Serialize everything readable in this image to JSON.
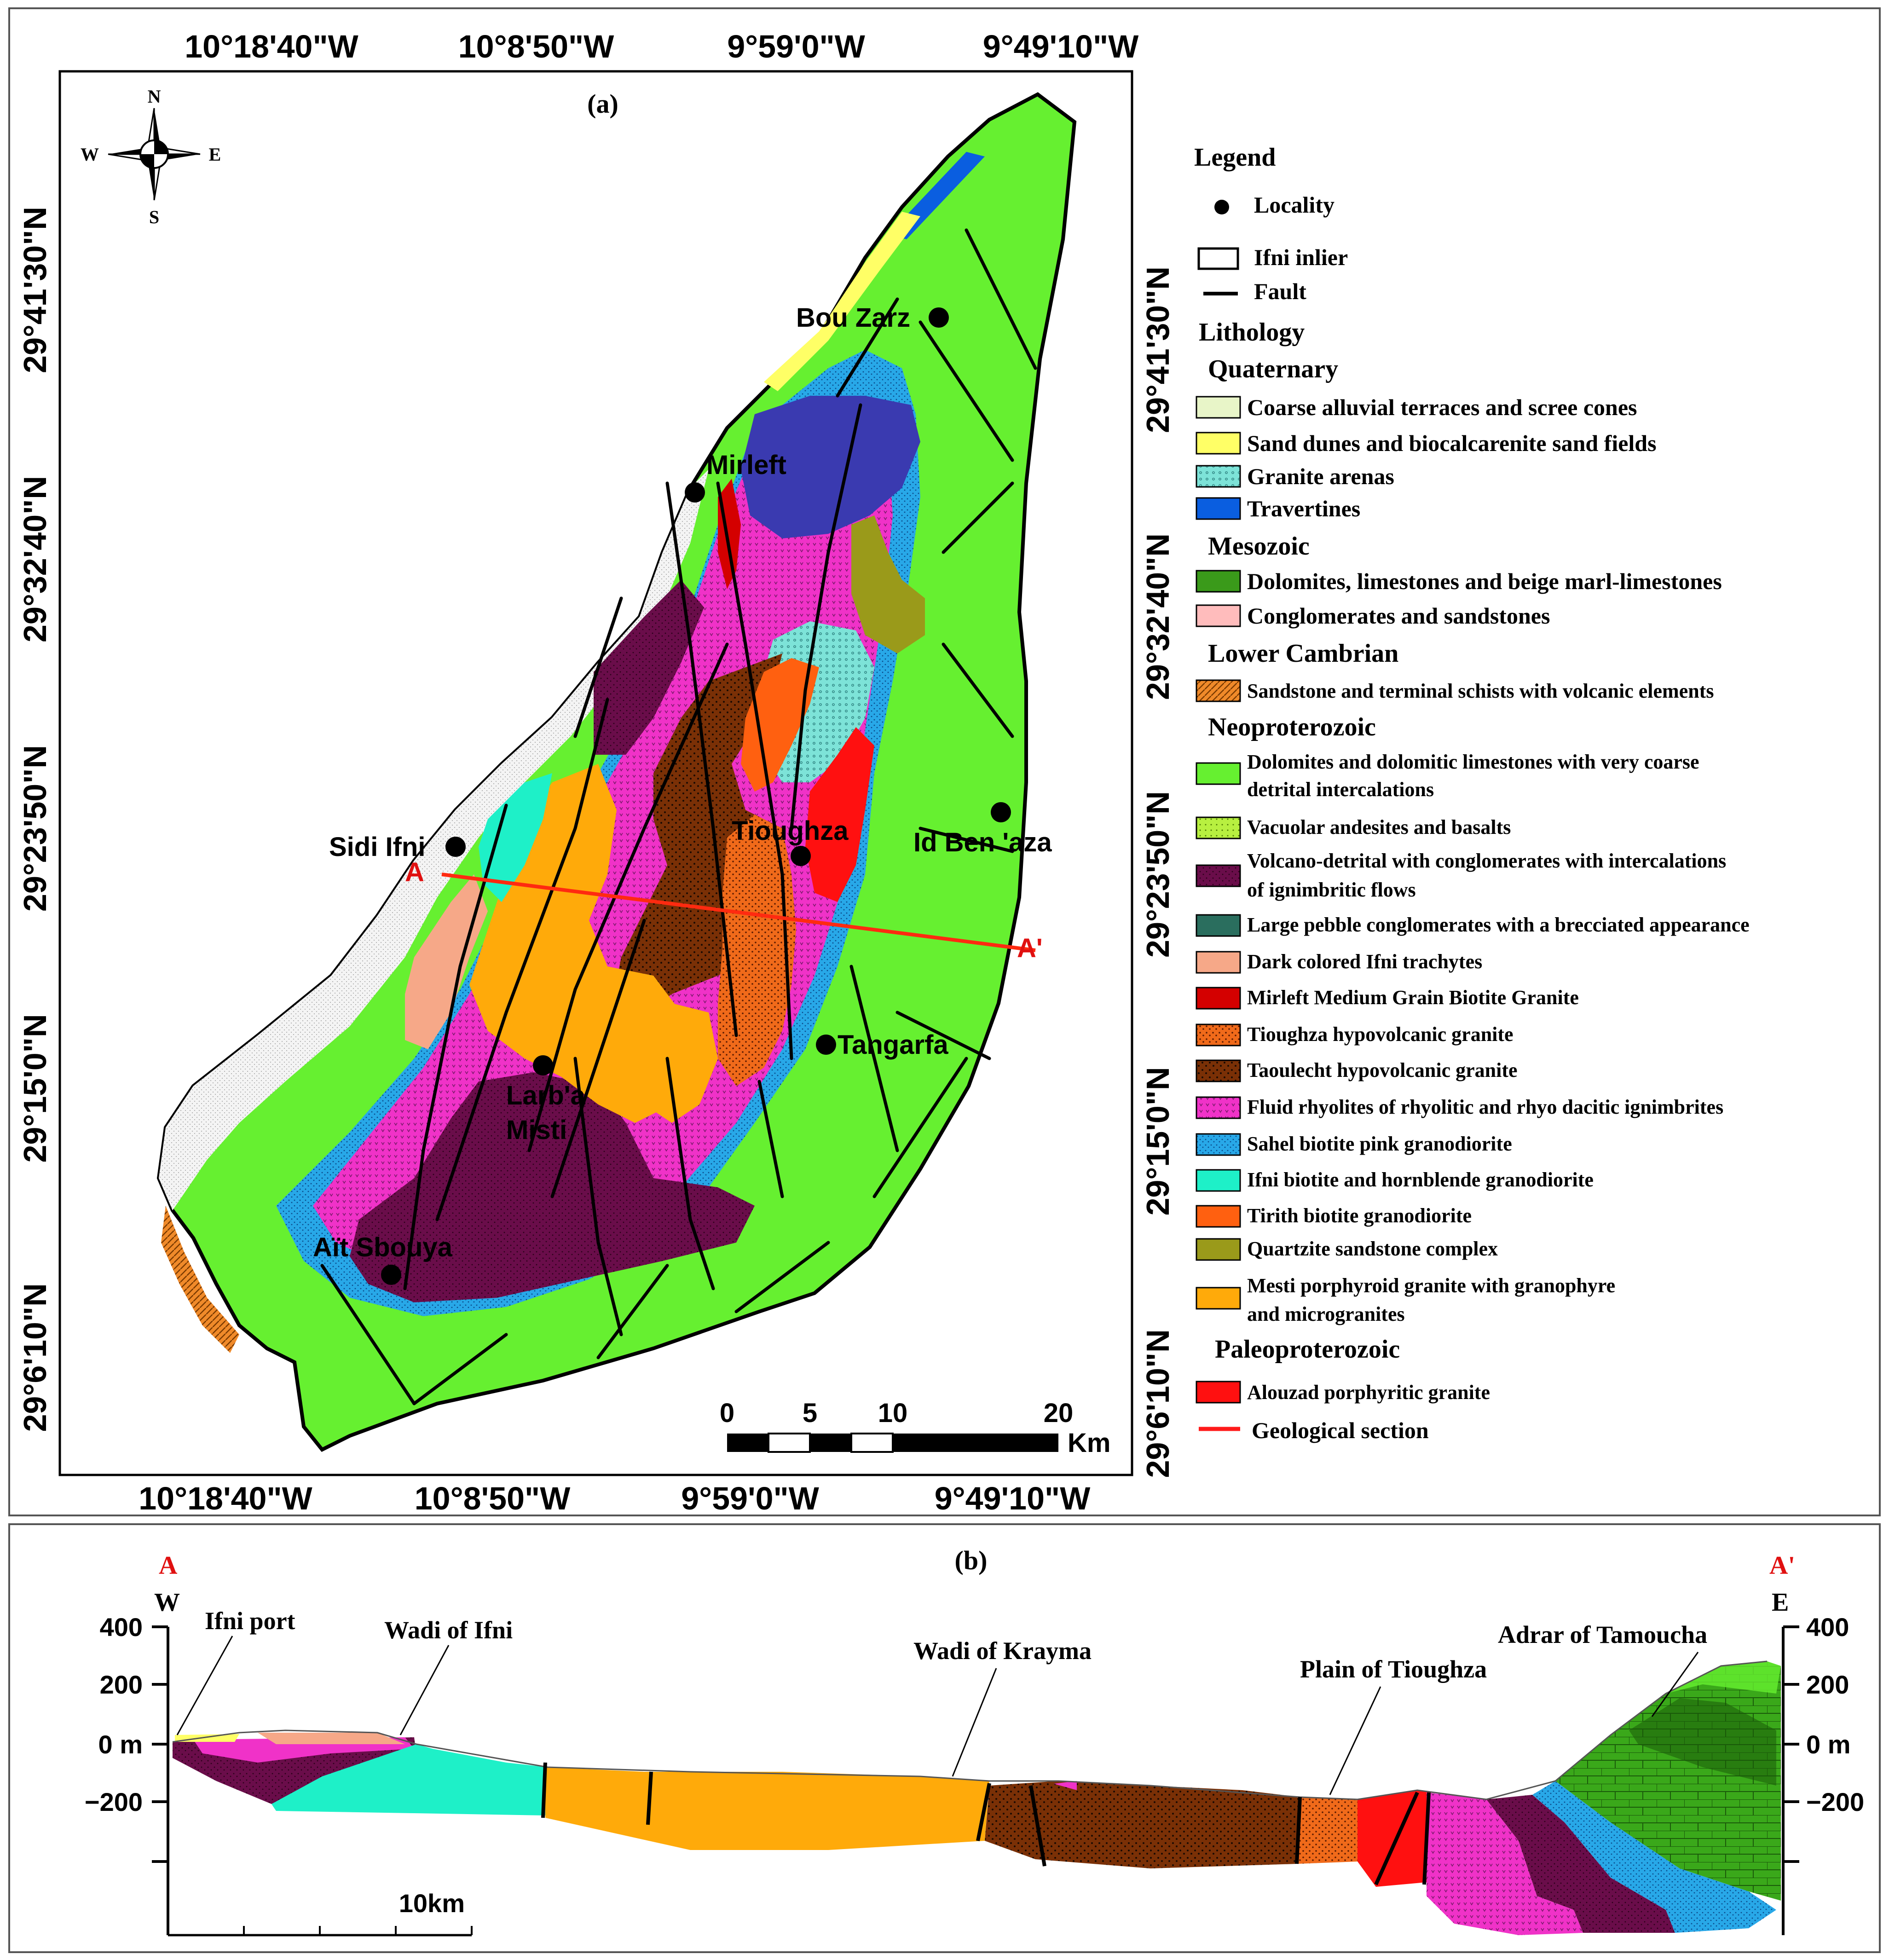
{
  "map": {
    "panel_label": "(a)",
    "compass": {
      "n": "N",
      "s": "S",
      "e": "E",
      "w": "W"
    },
    "lon_ticks": [
      "10°18'40\"W",
      "10°8'50\"W",
      "9°59'0\"W",
      "9°49'10\"W"
    ],
    "lat_ticks": [
      "29°41'30\"N",
      "29°32'40\"N",
      "29°23'50\"N",
      "29°15'0\"N",
      "29°6'10\"N"
    ],
    "localities": [
      "Bou Zarz",
      "Mirleft",
      "Sidi Ifni",
      "Tioughza",
      "Id Ben 'aza",
      "Tangarfa",
      "Larb'a",
      "Misti",
      "Aït Sbouya"
    ],
    "section_start": "A",
    "section_end": "A'",
    "scale": {
      "labels": [
        "0",
        "5",
        "10",
        "20"
      ],
      "unit": "Km"
    }
  },
  "legend": {
    "title": "Legend",
    "symbols": [
      {
        "label": "Locality"
      },
      {
        "label": "Ifni inlier"
      },
      {
        "label": "Fault"
      }
    ],
    "lithology_title": "Lithology",
    "groups": [
      {
        "name": "Quaternary",
        "items": [
          {
            "label": "Coarse alluvial terraces  and scree cones",
            "color": "#e8f5c8"
          },
          {
            "label": "Sand dunes and biocalcarenite sand fields",
            "color": "#ffff66"
          },
          {
            "label": "Granite arenas",
            "color": "#7de3d8"
          },
          {
            "label": "Travertines",
            "color": "#0a5ee0"
          }
        ]
      },
      {
        "name": "Mesozoic",
        "items": [
          {
            "label": "Dolomites, limestones and beige marl-limestones",
            "color": "#3a9a1a"
          },
          {
            "label": "Conglomerates and sandstones",
            "color": "#ffbcbc"
          }
        ]
      },
      {
        "name": "Lower Cambrian",
        "items": [
          {
            "label": "Sandstone and terminal schists with volcanic elements",
            "color": "#f08a2a"
          }
        ]
      },
      {
        "name": "Neoproterozoic",
        "items": [
          {
            "label": "Dolomites and dolomitic limestones with very coarse",
            "label2": "detrital intercalations",
            "color": "#66f030"
          },
          {
            "label": "Vacuolar andesites and basalts",
            "color": "#b8f040"
          },
          {
            "label": "Volcano-detrital with conglomerates with intercalations",
            "label2": "of ignimbritic flows",
            "color": "#6a0d4a"
          },
          {
            "label": "Large pebble conglomerates with a brecciated appearance",
            "color": "#2a6e5e"
          },
          {
            "label": "Dark colored Ifni trachytes",
            "color": "#f6a888"
          },
          {
            "label": "Mirleft Medium Grain Biotite Granite",
            "color": "#d40000"
          },
          {
            "label": "Tioughza hypovolcanic granite",
            "color": "#f06a1a"
          },
          {
            "label": "Taoulecht hypovolcanic granite",
            "color": "#7a3006"
          },
          {
            "label": "Fluid rhyolites of rhyolitic and rhyo dacitic ignimbrites",
            "color": "#f032c8"
          },
          {
            "label": "Sahel biotite pink granodiorite",
            "color": "#28a8e8"
          },
          {
            "label": "Ifni biotite and hornblende granodiorite",
            "color": "#1ef0c8"
          },
          {
            "label": "Tirith biotite granodiorite",
            "color": "#ff6010"
          },
          {
            "label": "Quartzite sandstone complex",
            "color": "#9a9a1a"
          },
          {
            "label": "Mesti porphyroid granite with granophyre",
            "label2": "and microgranites",
            "color": "#ffaa0a"
          }
        ]
      },
      {
        "name": "Paleoproterozoic",
        "items": [
          {
            "label": "Alouzad porphyritic granite",
            "color": "#ff1010"
          }
        ]
      }
    ],
    "section_label": "Geological section"
  },
  "section": {
    "panel_label": "(b)",
    "start": "A",
    "end": "A'",
    "west": "W",
    "east": "E",
    "y_ticks_left": [
      "400",
      "200",
      "0 m",
      "−200"
    ],
    "y_ticks_right": [
      "400",
      "200",
      "0 m",
      "−200"
    ],
    "places": [
      "Ifni port",
      "Wadi of Ifni",
      "Wadi of Krayma",
      "Plain of Tioughza",
      "Adrar of Tamoucha"
    ],
    "scale_label": "10km"
  }
}
